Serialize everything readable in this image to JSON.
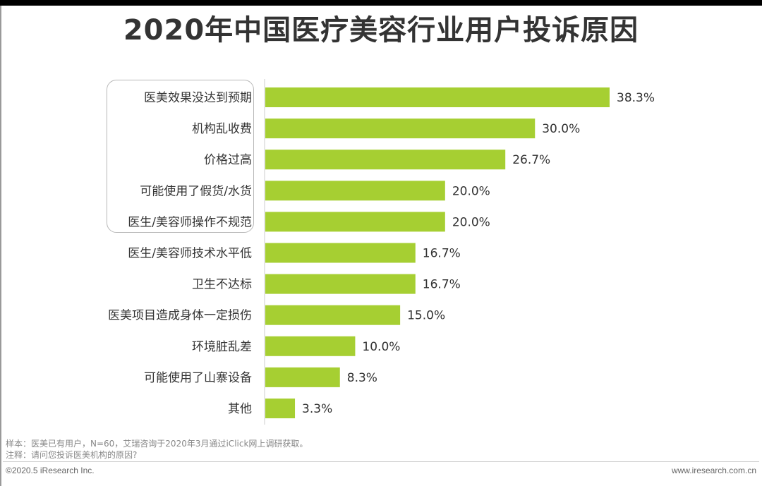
{
  "chart_data": {
    "type": "bar",
    "orientation": "horizontal",
    "title": "2020年中国医疗美容行业用户投诉原因",
    "categories": [
      "医美效果没达到预期",
      "机构乱收费",
      "价格过高",
      "可能使用了假货/水货",
      "医生/美容师操作不规范",
      "医生/美容师技术水平低",
      "卫生不达标",
      "医美项目造成身体一定损伤",
      "环境脏乱差",
      "可能使用了山寨设备",
      "其他"
    ],
    "values": [
      38.3,
      30.0,
      26.7,
      20.0,
      20.0,
      16.7,
      16.7,
      15.0,
      10.0,
      8.3,
      3.3
    ],
    "value_labels": [
      "38.3%",
      "30.0%",
      "26.7%",
      "20.0%",
      "20.0%",
      "16.7%",
      "16.7%",
      "15.0%",
      "10.0%",
      "8.3%",
      "3.3%"
    ],
    "xlim": [
      0,
      38.3
    ],
    "grid": false,
    "bar_color": "#a6cf32",
    "highlighted_categories": 5
  },
  "notes": {
    "sample": "样本：医美已有用户，N=60，艾瑞咨询于2020年3月通过iClick网上调研获取。",
    "remark": "注释：请问您投诉医美机构的原因?"
  },
  "footer": {
    "copyright": "©2020.5 iResearch Inc.",
    "website": "www.iresearch.com.cn"
  },
  "colors": {
    "title": "#333333",
    "bar": "#a6cf32",
    "label": "#333333",
    "note": "#888888"
  }
}
